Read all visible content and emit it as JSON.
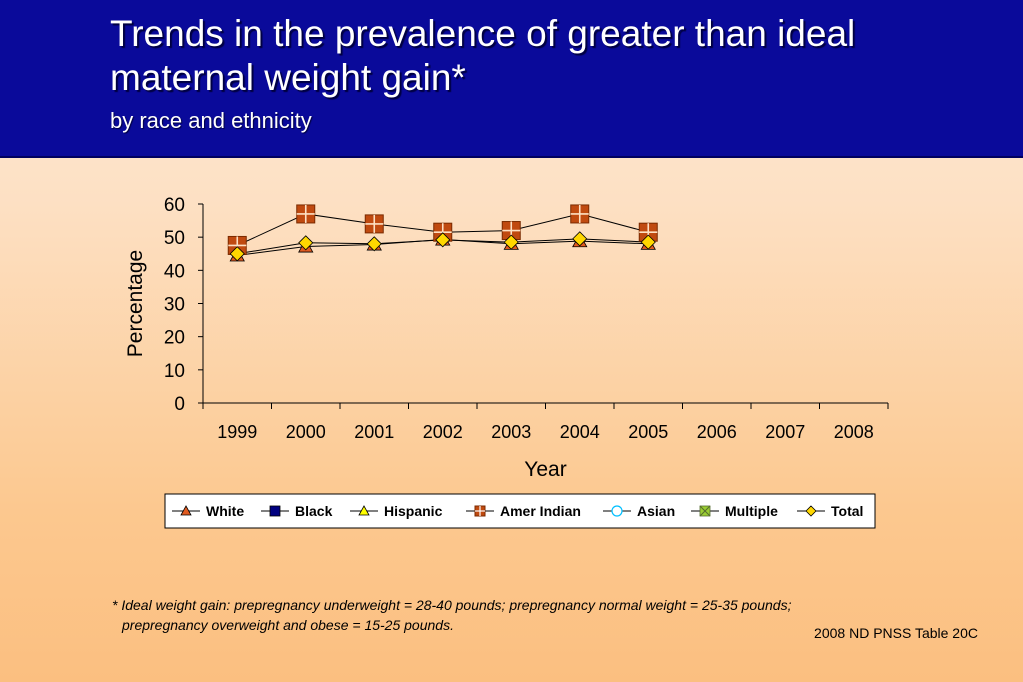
{
  "header": {
    "title": "Trends in the prevalence of greater than ideal maternal weight gain*",
    "subtitle": "by race and ethnicity"
  },
  "footnote": {
    "line1": "*  Ideal weight gain: prepregnancy underweight = 28-40 pounds; prepregnancy normal weight = 25-35 pounds;",
    "line2": "prepregnancy overweight and obese = 15-25 pounds."
  },
  "source": "2008 ND PNSS Table 20C",
  "chart_data": {
    "type": "line",
    "xlabel": "Year",
    "ylabel": "Percentage",
    "ylim": [
      0,
      60
    ],
    "yticks": [
      0,
      10,
      20,
      30,
      40,
      50,
      60
    ],
    "categories": [
      "1999",
      "2000",
      "2001",
      "2002",
      "2003",
      "2004",
      "2005",
      "2006",
      "2007",
      "2008"
    ],
    "grid": false,
    "legend_position": "bottom",
    "series": [
      {
        "name": "White",
        "marker": "triangle",
        "color": "#e05a20",
        "values": [
          44.5,
          47.2,
          47.8,
          49.3,
          48.0,
          48.8,
          48.0,
          null,
          null,
          null
        ]
      },
      {
        "name": "Black",
        "marker": "square",
        "color": "#000080",
        "values": [
          null,
          null,
          null,
          null,
          null,
          null,
          null,
          null,
          null,
          null
        ]
      },
      {
        "name": "Hispanic",
        "marker": "triangle",
        "color": "#ffff00",
        "values": [
          null,
          null,
          null,
          null,
          null,
          null,
          null,
          null,
          null,
          null
        ]
      },
      {
        "name": "Amer Indian",
        "marker": "square-cross",
        "color": "#c04a10",
        "values": [
          47.5,
          57.0,
          54.0,
          51.5,
          52.0,
          57.0,
          51.5,
          null,
          null,
          null
        ]
      },
      {
        "name": "Asian",
        "marker": "circle",
        "color": "#00bfff",
        "values": [
          null,
          null,
          null,
          null,
          null,
          null,
          null,
          null,
          null,
          null
        ]
      },
      {
        "name": "Multiple",
        "marker": "square-x",
        "color": "#9acd32",
        "values": [
          null,
          null,
          null,
          null,
          null,
          null,
          null,
          null,
          null,
          null
        ]
      },
      {
        "name": "Total",
        "marker": "diamond",
        "color": "#ffd700",
        "values": [
          45.0,
          48.3,
          48.0,
          49.2,
          48.5,
          49.5,
          48.5,
          null,
          null,
          null
        ]
      }
    ]
  }
}
